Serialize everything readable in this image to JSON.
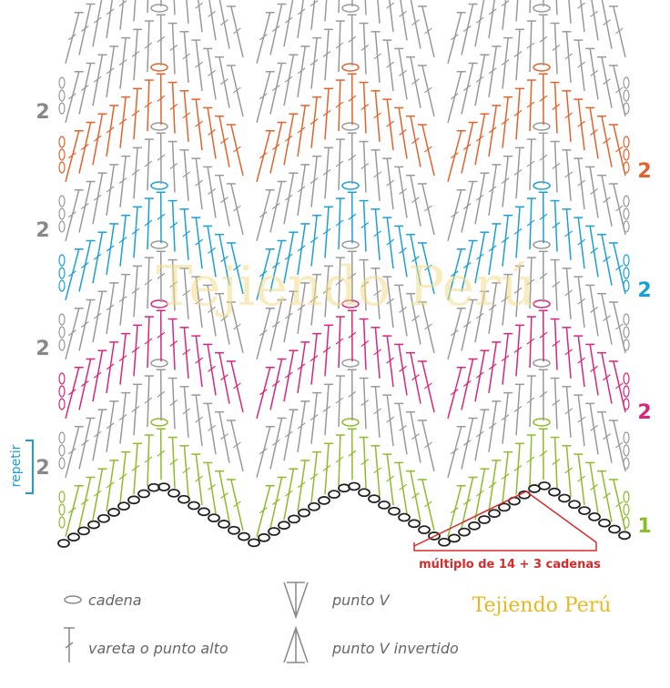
{
  "watermark": "Tejiendo Perú",
  "left_labels": [
    "2",
    "2",
    "2",
    "2"
  ],
  "repeat_label": "repetir",
  "right_labels": [
    "2",
    "2",
    "2",
    "1"
  ],
  "multiple_note": "múltiplo de 14 + 3 cadenas",
  "legend": [
    {
      "label": "cadena"
    },
    {
      "label": "vareta o punto alto"
    },
    {
      "label": "punto V"
    },
    {
      "label": "punto V invertido"
    }
  ],
  "brand": "Tejiendo Perú"
}
